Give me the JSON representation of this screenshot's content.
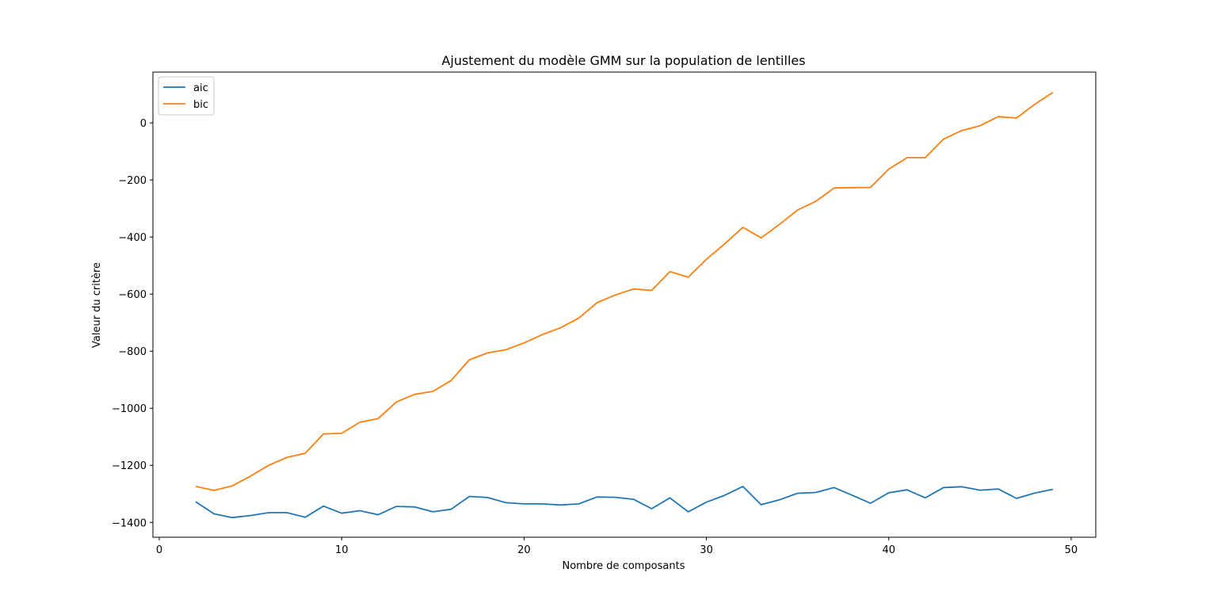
{
  "chart_data": {
    "type": "line",
    "title": "Ajustement du modèle GMM sur la population de lentilles",
    "xlabel": "Nombre de composants",
    "ylabel": "Valeur du critère",
    "xlim": [
      -0.35,
      51.35
    ],
    "ylim": [
      -1452,
      178
    ],
    "xticks": [
      0,
      10,
      20,
      30,
      40,
      50
    ],
    "yticks": [
      -1400,
      -1200,
      -1000,
      -800,
      -600,
      -400,
      -200,
      0
    ],
    "grid": false,
    "legend_position": "top-left",
    "x": [
      2,
      3,
      4,
      5,
      6,
      7,
      8,
      9,
      10,
      11,
      12,
      13,
      14,
      15,
      16,
      17,
      18,
      19,
      20,
      21,
      22,
      23,
      24,
      25,
      26,
      27,
      28,
      29,
      30,
      31,
      32,
      33,
      34,
      35,
      36,
      37,
      38,
      39,
      40,
      41,
      42,
      43,
      44,
      45,
      46,
      47,
      48,
      49
    ],
    "series": [
      {
        "name": "aic",
        "color": "#1f77b4",
        "values": [
          -1328,
          -1370,
          -1383,
          -1376,
          -1366,
          -1366,
          -1382,
          -1343,
          -1368,
          -1359,
          -1373,
          -1344,
          -1346,
          -1363,
          -1354,
          -1309,
          -1313,
          -1331,
          -1335,
          -1335,
          -1339,
          -1335,
          -1311,
          -1312,
          -1319,
          -1352,
          -1314,
          -1363,
          -1329,
          -1305,
          -1274,
          -1338,
          -1321,
          -1298,
          -1295,
          -1278,
          -1305,
          -1333,
          -1296,
          -1286,
          -1314,
          -1278,
          -1275,
          -1287,
          -1283,
          -1316,
          -1297,
          -1284
        ]
      },
      {
        "name": "bic",
        "color": "#ff7f0e",
        "values": [
          -1274,
          -1288,
          -1272,
          -1238,
          -1200,
          -1172,
          -1158,
          -1090,
          -1088,
          -1049,
          -1036,
          -978,
          -951,
          -941,
          -903,
          -830,
          -806,
          -795,
          -771,
          -742,
          -718,
          -684,
          -630,
          -603,
          -582,
          -587,
          -521,
          -541,
          -478,
          -424,
          -366,
          -403,
          -356,
          -305,
          -275,
          -228,
          -227,
          -226,
          -162,
          -122,
          -122,
          -57,
          -27,
          -10,
          22,
          17,
          65,
          107
        ]
      }
    ]
  }
}
